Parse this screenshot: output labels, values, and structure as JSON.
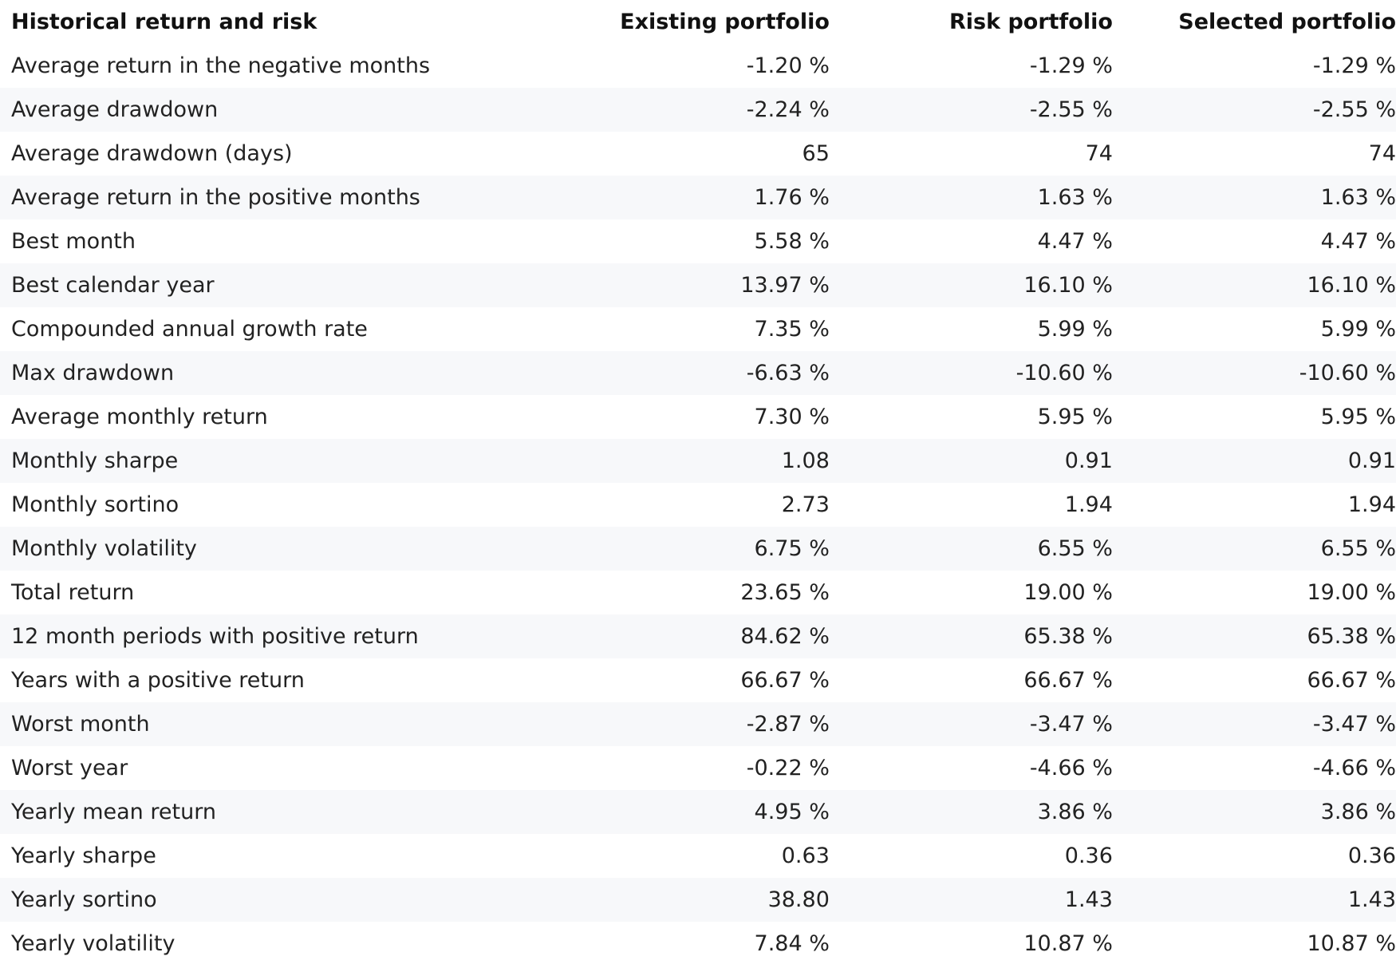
{
  "table": {
    "headers": {
      "metric": "Historical return and risk",
      "existing": "Existing portfolio",
      "risk": "Risk portfolio",
      "selected": "Selected portfolio"
    },
    "rows": [
      {
        "metric": "Average return in the negative months",
        "existing": "-1.20 %",
        "risk": "-1.29 %",
        "selected": "-1.29 %"
      },
      {
        "metric": "Average drawdown",
        "existing": "-2.24 %",
        "risk": "-2.55 %",
        "selected": "-2.55 %"
      },
      {
        "metric": "Average drawdown (days)",
        "existing": "65",
        "risk": "74",
        "selected": "74"
      },
      {
        "metric": "Average return in the positive months",
        "existing": "1.76 %",
        "risk": "1.63 %",
        "selected": "1.63 %"
      },
      {
        "metric": "Best month",
        "existing": "5.58 %",
        "risk": "4.47 %",
        "selected": "4.47 %"
      },
      {
        "metric": "Best calendar year",
        "existing": "13.97 %",
        "risk": "16.10 %",
        "selected": "16.10 %"
      },
      {
        "metric": "Compounded annual growth rate",
        "existing": "7.35 %",
        "risk": "5.99 %",
        "selected": "5.99 %"
      },
      {
        "metric": "Max drawdown",
        "existing": "-6.63 %",
        "risk": "-10.60 %",
        "selected": "-10.60 %"
      },
      {
        "metric": "Average monthly return",
        "existing": "7.30 %",
        "risk": "5.95 %",
        "selected": "5.95 %"
      },
      {
        "metric": "Monthly sharpe",
        "existing": "1.08",
        "risk": "0.91",
        "selected": "0.91"
      },
      {
        "metric": "Monthly sortino",
        "existing": "2.73",
        "risk": "1.94",
        "selected": "1.94"
      },
      {
        "metric": "Monthly volatility",
        "existing": "6.75 %",
        "risk": "6.55 %",
        "selected": "6.55 %"
      },
      {
        "metric": "Total return",
        "existing": "23.65 %",
        "risk": "19.00 %",
        "selected": "19.00 %"
      },
      {
        "metric": "12 month periods with positive return",
        "existing": "84.62 %",
        "risk": "65.38 %",
        "selected": "65.38 %"
      },
      {
        "metric": "Years with a positive return",
        "existing": "66.67 %",
        "risk": "66.67 %",
        "selected": "66.67 %"
      },
      {
        "metric": "Worst month",
        "existing": "-2.87 %",
        "risk": "-3.47 %",
        "selected": "-3.47 %"
      },
      {
        "metric": "Worst year",
        "existing": "-0.22 %",
        "risk": "-4.66 %",
        "selected": "-4.66 %"
      },
      {
        "metric": "Yearly mean return",
        "existing": "4.95 %",
        "risk": "3.86 %",
        "selected": "3.86 %"
      },
      {
        "metric": "Yearly sharpe",
        "existing": "0.63",
        "risk": "0.36",
        "selected": "0.36"
      },
      {
        "metric": "Yearly sortino",
        "existing": "38.80",
        "risk": "1.43",
        "selected": "1.43"
      },
      {
        "metric": "Yearly volatility",
        "existing": "7.84 %",
        "risk": "10.87 %",
        "selected": "10.87 %"
      }
    ]
  },
  "colors": {
    "row_alt": "#f7f8fa",
    "row_base": "#ffffff",
    "text": "#222222",
    "header_text": "#111111"
  }
}
